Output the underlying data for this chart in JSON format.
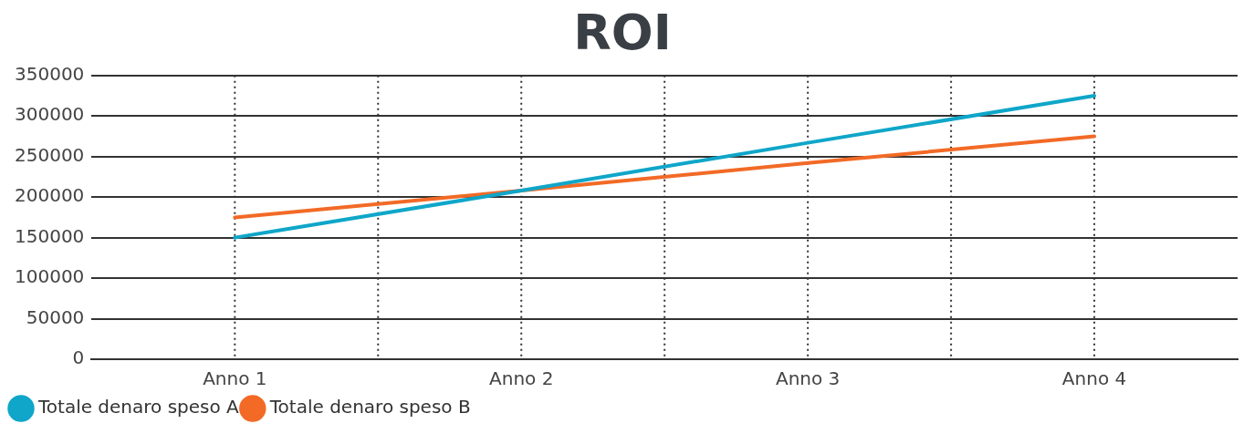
{
  "chart_data": {
    "type": "line",
    "title": "ROI",
    "categories": [
      "Anno 1",
      "Anno 2",
      "Anno 3",
      "Anno 4"
    ],
    "series": [
      {
        "name": "Totale denaro speso A",
        "color": "#0fa6c9",
        "values": [
          150000,
          208000,
          267000,
          325000
        ]
      },
      {
        "name": "Totale denaro speso B",
        "color": "#f26a26",
        "values": [
          175000,
          208000,
          242000,
          275000
        ]
      }
    ],
    "ylim": [
      0,
      350000
    ],
    "yticks": [
      0,
      50000,
      100000,
      150000,
      200000,
      250000,
      300000,
      350000
    ],
    "grid": true,
    "legend": "bottom left",
    "marker": "none",
    "line_style": "solid"
  }
}
